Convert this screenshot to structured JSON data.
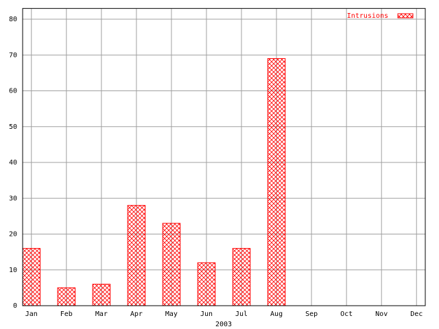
{
  "chart_data": {
    "type": "bar",
    "x_label": "2003",
    "categories": [
      "Jan",
      "Feb",
      "Mar",
      "Apr",
      "May",
      "Jun",
      "Jul",
      "Aug",
      "Sep",
      "Oct",
      "Nov",
      "Dec"
    ],
    "series": [
      {
        "name": "Intrusions",
        "color": "#ff0000",
        "values": [
          16,
          5,
          6,
          28,
          23,
          12,
          16,
          69,
          0,
          0,
          0,
          0
        ]
      }
    ],
    "ylim": [
      0,
      83
    ],
    "yticks": [
      0,
      10,
      20,
      30,
      40,
      50,
      60,
      70,
      80
    ],
    "grid": true,
    "legend": "top-right"
  }
}
